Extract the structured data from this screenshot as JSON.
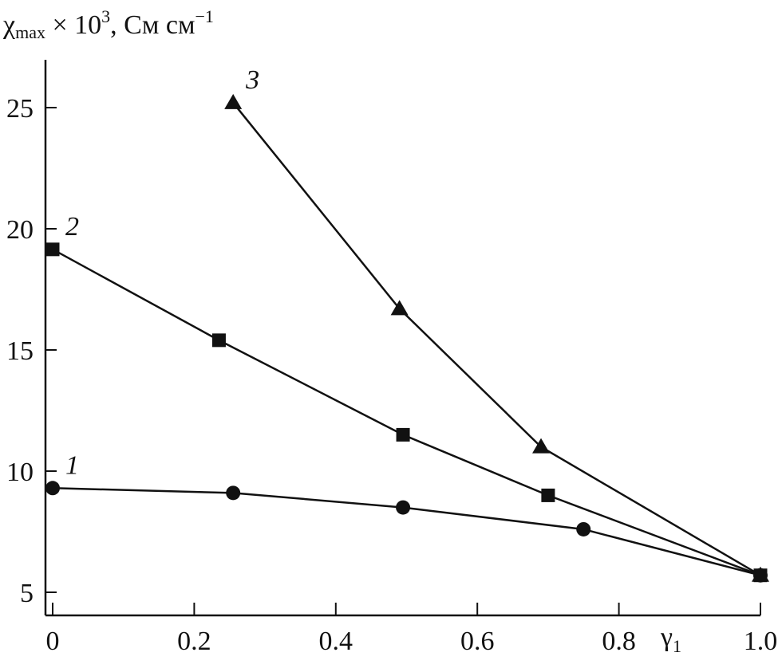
{
  "chart_data": {
    "type": "line",
    "title": "",
    "ylabel": {
      "symbol": "χ",
      "subscript": "max",
      "rest": " × 10",
      "sup": "3",
      "units": ", См см",
      "units_sup": "−1"
    },
    "xlabel": {
      "symbol": "γ",
      "subscript": "1"
    },
    "xlim": [
      0,
      1.0
    ],
    "ylim": [
      5,
      27
    ],
    "xticks": [
      0,
      0.2,
      0.4,
      0.6,
      0.8,
      1.0
    ],
    "xtick_labels": [
      "0",
      "0.2",
      "0.4",
      "0.6",
      "0.8",
      "1.0"
    ],
    "yticks": [
      5,
      10,
      15,
      20,
      25
    ],
    "ytick_labels": [
      "5",
      "10",
      "15",
      "20",
      "25"
    ],
    "grid": false,
    "series": [
      {
        "name": "1",
        "marker": "circle",
        "x": [
          0,
          0.255,
          0.495,
          0.75,
          1.0
        ],
        "y": [
          9.3,
          9.1,
          8.5,
          7.6,
          5.7
        ]
      },
      {
        "name": "2",
        "marker": "square",
        "x": [
          0,
          0.235,
          0.495,
          0.7,
          1.0
        ],
        "y": [
          19.15,
          15.4,
          11.5,
          9.0,
          5.7
        ]
      },
      {
        "name": "3",
        "marker": "triangle",
        "x": [
          0.255,
          0.49,
          0.69,
          1.0
        ],
        "y": [
          25.2,
          16.7,
          11.0,
          5.7
        ]
      }
    ],
    "color": "#111111"
  }
}
